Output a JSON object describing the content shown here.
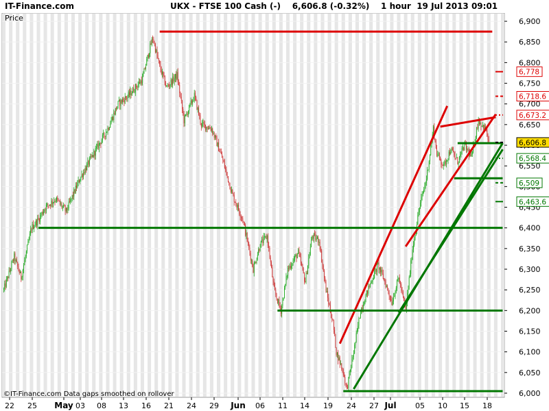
{
  "header": {
    "brand": "IT-Finance.com",
    "instrument": "UKX - FTSE 100 Cash (-)",
    "last_change": "6,606.8 (-0.32%)",
    "timeframe": "1 hour",
    "datetime": "19 Jul 2013 09:01"
  },
  "footer": {
    "copyright": "©IT-Finance.com  Data gaps smoothed on rollover"
  },
  "chart_data": {
    "type": "candlestick",
    "timeframe": "1 hour",
    "ylabel": "Price",
    "ylim": [
      5990,
      6920
    ],
    "y_ticks": [
      6000,
      6050,
      6100,
      6150,
      6200,
      6250,
      6300,
      6350,
      6400,
      6450,
      6500,
      6550,
      6600,
      6650,
      6700,
      6750,
      6800,
      6850,
      6900
    ],
    "y_tick_labels": [
      "6,000",
      "6,050",
      "6,100",
      "6,150",
      "6,200",
      "6,250",
      "6,300",
      "6,350",
      "6,400",
      "6,450",
      "6,500",
      "6,550",
      "6,600",
      "6,650",
      "6,700",
      "6,750",
      "6,800",
      "6,850",
      "6,900"
    ],
    "x_ticks": [
      "22",
      "25",
      "May",
      "03",
      "08",
      "13",
      "16",
      "21",
      "24",
      "29",
      "Jun",
      "06",
      "11",
      "14",
      "19",
      "24",
      "27",
      "Jul",
      "05",
      "10",
      "15",
      "18"
    ],
    "grid": true,
    "price_path": [
      [
        0,
        6250
      ],
      [
        3,
        6330
      ],
      [
        5,
        6280
      ],
      [
        8,
        6400
      ],
      [
        10,
        6420
      ],
      [
        12,
        6450
      ],
      [
        15,
        6470
      ],
      [
        18,
        6440
      ],
      [
        22,
        6520
      ],
      [
        26,
        6580
      ],
      [
        30,
        6640
      ],
      [
        33,
        6700
      ],
      [
        36,
        6720
      ],
      [
        40,
        6760
      ],
      [
        42,
        6830
      ],
      [
        43,
        6860
      ],
      [
        45,
        6790
      ],
      [
        47,
        6740
      ],
      [
        50,
        6770
      ],
      [
        52,
        6660
      ],
      [
        55,
        6720
      ],
      [
        57,
        6650
      ],
      [
        60,
        6640
      ],
      [
        63,
        6570
      ],
      [
        66,
        6480
      ],
      [
        69,
        6420
      ],
      [
        72,
        6300
      ],
      [
        74,
        6360
      ],
      [
        76,
        6380
      ],
      [
        78,
        6250
      ],
      [
        80,
        6200
      ],
      [
        82,
        6300
      ],
      [
        85,
        6340
      ],
      [
        87,
        6270
      ],
      [
        89,
        6380
      ],
      [
        91,
        6370
      ],
      [
        93,
        6250
      ],
      [
        95,
        6170
      ],
      [
        96,
        6100
      ],
      [
        98,
        6050
      ],
      [
        99,
        6010
      ],
      [
        101,
        6100
      ],
      [
        103,
        6200
      ],
      [
        106,
        6270
      ],
      [
        108,
        6310
      ],
      [
        110,
        6270
      ],
      [
        112,
        6220
      ],
      [
        114,
        6280
      ],
      [
        116,
        6200
      ],
      [
        118,
        6350
      ],
      [
        120,
        6450
      ],
      [
        122,
        6520
      ],
      [
        124,
        6640
      ],
      [
        125,
        6580
      ],
      [
        127,
        6550
      ],
      [
        129,
        6590
      ],
      [
        131,
        6560
      ],
      [
        133,
        6600
      ],
      [
        135,
        6570
      ],
      [
        137,
        6660
      ],
      [
        139,
        6640
      ],
      [
        140,
        6606.8
      ]
    ],
    "trendlines": [
      {
        "color": "#dd0000",
        "points": [
          [
            45,
            6875
          ],
          [
            141,
            6875
          ]
        ]
      },
      {
        "color": "#dd0000",
        "points": [
          [
            97,
            6120
          ],
          [
            128,
            6695
          ]
        ]
      },
      {
        "color": "#dd0000",
        "points": [
          [
            116,
            6355
          ],
          [
            142,
            6675
          ]
        ]
      },
      {
        "color": "#dd0000",
        "points": [
          [
            126,
            6645
          ],
          [
            142,
            6668
          ]
        ]
      },
      {
        "color": "#007700",
        "points": [
          [
            10,
            6400
          ],
          [
            144,
            6400
          ]
        ]
      },
      {
        "color": "#007700",
        "points": [
          [
            79,
            6200
          ],
          [
            144,
            6200
          ]
        ]
      },
      {
        "color": "#007700",
        "points": [
          [
            98,
            6005
          ],
          [
            144,
            6005
          ]
        ]
      },
      {
        "color": "#007700",
        "points": [
          [
            101,
            6010
          ],
          [
            144,
            6605
          ]
        ]
      },
      {
        "color": "#007700",
        "points": [
          [
            114,
            6195
          ],
          [
            144,
            6590
          ]
        ]
      },
      {
        "color": "#007700",
        "points": [
          [
            131,
            6605
          ],
          [
            144,
            6605
          ]
        ]
      },
      {
        "color": "#007700",
        "points": [
          [
            130,
            6520
          ],
          [
            144,
            6520
          ]
        ]
      }
    ],
    "level_markers": [
      {
        "value": 6778,
        "label": "6,778",
        "color": "#dd0000",
        "style": "solid"
      },
      {
        "value": 6718.6,
        "label": "6,718.6",
        "color": "#dd0000",
        "style": "dashed"
      },
      {
        "value": 6673.2,
        "label": "6,673.2",
        "color": "#dd0000",
        "style": "dotted"
      },
      {
        "value": 6606.8,
        "label": "6,606.8",
        "color": "#000000",
        "style": "dashed",
        "highlight": "#ffdd00"
      },
      {
        "value": 6568.4,
        "label": "6,568.4",
        "color": "#007700",
        "style": "dotted"
      },
      {
        "value": 6509,
        "label": "6,509",
        "color": "#007700",
        "style": "dashed"
      },
      {
        "value": 6463.6,
        "label": "6,463.6",
        "color": "#007700",
        "style": "solid"
      }
    ],
    "colors": {
      "up": "#22aa22",
      "down": "#cc3333",
      "grid_band": "#e6e6e6"
    }
  }
}
